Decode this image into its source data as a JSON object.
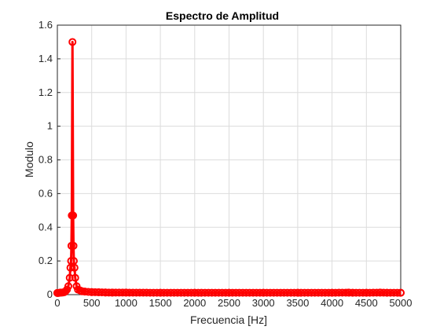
{
  "chart_data": {
    "type": "line",
    "title": "Espectro de Amplitud",
    "xlabel": "Frecuencia [Hz]",
    "ylabel": "Modulo",
    "xlim": [
      0,
      5000
    ],
    "ylim": [
      0,
      1.6
    ],
    "grid": true,
    "legend": "none",
    "marker": "circle",
    "color": "#ff0000",
    "xticks": [
      0,
      500,
      1000,
      1500,
      2000,
      2500,
      3000,
      3500,
      4000,
      4500,
      5000
    ],
    "yticks": [
      0,
      0.2,
      0.4,
      0.6,
      0.8,
      1,
      1.2,
      1.4,
      1.6
    ],
    "peak": {
      "x": 220,
      "y": 1.5
    },
    "points": [
      [
        0,
        0.01
      ],
      [
        20,
        0.01
      ],
      [
        40,
        0.012
      ],
      [
        60,
        0.012
      ],
      [
        80,
        0.013
      ],
      [
        100,
        0.015
      ],
      [
        120,
        0.02
      ],
      [
        140,
        0.03
      ],
      [
        160,
        0.05
      ],
      [
        180,
        0.1
      ],
      [
        190,
        0.16
      ],
      [
        200,
        0.2
      ],
      [
        205,
        0.29
      ],
      [
        210,
        0.47
      ],
      [
        220,
        1.5
      ],
      [
        230,
        0.47
      ],
      [
        235,
        0.29
      ],
      [
        240,
        0.2
      ],
      [
        250,
        0.16
      ],
      [
        260,
        0.1
      ],
      [
        280,
        0.05
      ],
      [
        300,
        0.03
      ],
      [
        330,
        0.025
      ],
      [
        360,
        0.02
      ],
      [
        400,
        0.018
      ],
      [
        500,
        0.015
      ],
      [
        600,
        0.014
      ],
      [
        700,
        0.013
      ],
      [
        800,
        0.012
      ],
      [
        1000,
        0.012
      ],
      [
        1500,
        0.011
      ],
      [
        2000,
        0.011
      ],
      [
        2500,
        0.011
      ],
      [
        3000,
        0.011
      ],
      [
        3500,
        0.011
      ],
      [
        4000,
        0.011
      ],
      [
        4240,
        0.012
      ],
      [
        4300,
        0.011
      ],
      [
        4500,
        0.011
      ],
      [
        4700,
        0.012
      ],
      [
        4800,
        0.011
      ],
      [
        5000,
        0.011
      ]
    ]
  }
}
